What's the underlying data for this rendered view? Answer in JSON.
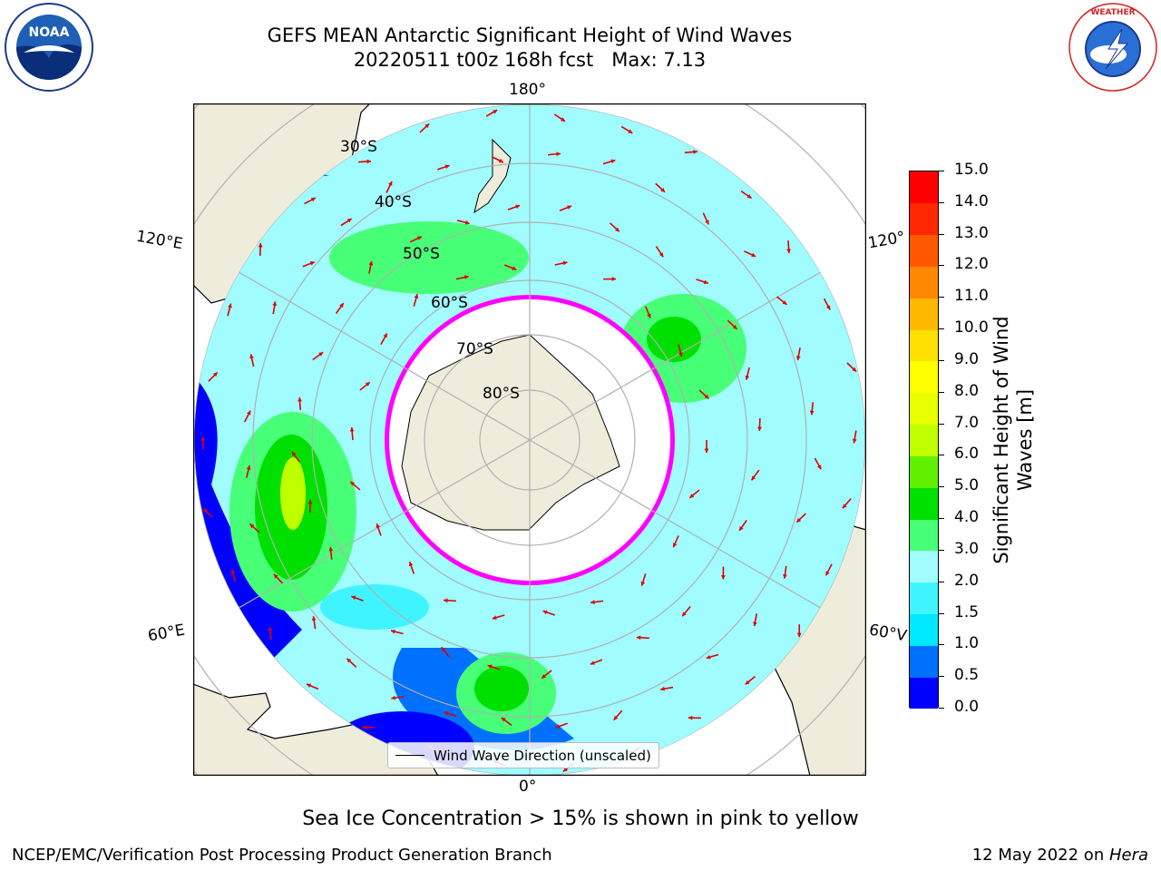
{
  "title": {
    "line1": "GEFS MEAN Antarctic Significant Height of Wind Waves",
    "line2": "20220511 t00z 168h fcst   Max: 7.13"
  },
  "logos": {
    "left": "noaa-logo",
    "right": "nws-logo",
    "left_text": "NOAA",
    "right_text": "NATIONAL WEATHER SERVICE"
  },
  "map": {
    "projection": "south-polar-stereographic",
    "lon_labels": {
      "top": "180°",
      "bottom": "0°",
      "left_upper": "120°E",
      "left_lower": "60°E",
      "right_upper": "120°",
      "right_lower": "60°V"
    },
    "lat_labels": [
      "30°S",
      "40°S",
      "50°S",
      "60°S",
      "70°S",
      "80°S"
    ],
    "legend_label": "Wind Wave Direction (unscaled)",
    "colors": {
      "land": "#eeeddc",
      "ice_shelf": "#ffffff",
      "arrow": "#e00000",
      "grid": "#b0b0b0",
      "ice_edge": [
        "#ff00ff",
        "#ffff00"
      ]
    }
  },
  "colorbar": {
    "label": "Significant Height of Wind Waves [m]",
    "ticks": [
      "0.0",
      "0.5",
      "1.0",
      "1.5",
      "2.0",
      "3.0",
      "4.0",
      "5.0",
      "6.0",
      "7.0",
      "8.0",
      "9.0",
      "10.0",
      "11.0",
      "12.0",
      "13.0",
      "14.0",
      "15.0"
    ],
    "colors": [
      "#0000ff",
      "#0070ff",
      "#00e8ff",
      "#40f4ff",
      "#a0fcff",
      "#48ff78",
      "#00e000",
      "#60f000",
      "#c0ff00",
      "#e8ff00",
      "#ffff00",
      "#ffe000",
      "#ffb800",
      "#ff8800",
      "#ff5800",
      "#ff2800",
      "#ff0000"
    ]
  },
  "note": "Sea Ice Concentration > 15% is shown in pink to yellow",
  "footer": {
    "left": "NCEP/EMC/Verification Post Processing Product Generation Branch",
    "right_date": "12 May 2022 on ",
    "right_host": "Hera"
  }
}
